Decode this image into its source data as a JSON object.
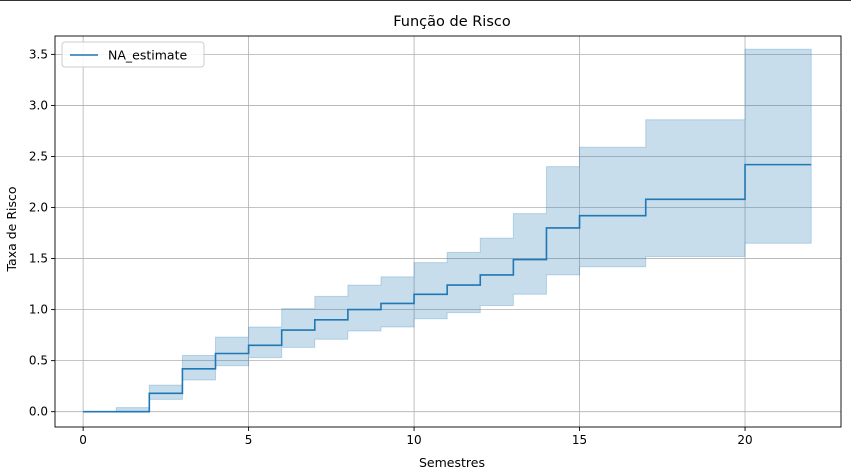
{
  "chart_data": {
    "type": "line",
    "title": "Função de Risco",
    "xlabel": "Semestres",
    "ylabel": "Taxa de Risco",
    "xlim": [
      -0.85,
      22.9
    ],
    "ylim": [
      -0.15,
      3.68
    ],
    "xticks": [
      0,
      5,
      10,
      15,
      20
    ],
    "yticks": [
      0.0,
      0.5,
      1.0,
      1.5,
      2.0,
      2.5,
      3.0,
      3.5
    ],
    "grid": true,
    "legend_position": "top-left",
    "series": [
      {
        "name": "NA_estimate",
        "color": "#1f77b4",
        "step": "post",
        "x": [
          0,
          1,
          2,
          3,
          4,
          5,
          6,
          7,
          8,
          9,
          10,
          11,
          12,
          13,
          14,
          15,
          17,
          20,
          22
        ],
        "y": [
          0.0,
          0.0,
          0.18,
          0.42,
          0.57,
          0.65,
          0.8,
          0.9,
          1.0,
          1.06,
          1.15,
          1.24,
          1.34,
          1.49,
          1.8,
          1.92,
          2.08,
          2.42,
          2.42
        ],
        "lower": [
          0.0,
          0.0,
          0.12,
          0.31,
          0.45,
          0.53,
          0.63,
          0.71,
          0.79,
          0.83,
          0.91,
          0.97,
          1.04,
          1.15,
          1.34,
          1.42,
          1.52,
          1.65,
          1.65
        ],
        "upper": [
          0.0,
          0.04,
          0.26,
          0.55,
          0.73,
          0.83,
          1.01,
          1.13,
          1.24,
          1.32,
          1.46,
          1.56,
          1.7,
          1.94,
          2.4,
          2.59,
          2.86,
          3.55,
          3.55
        ]
      }
    ]
  }
}
